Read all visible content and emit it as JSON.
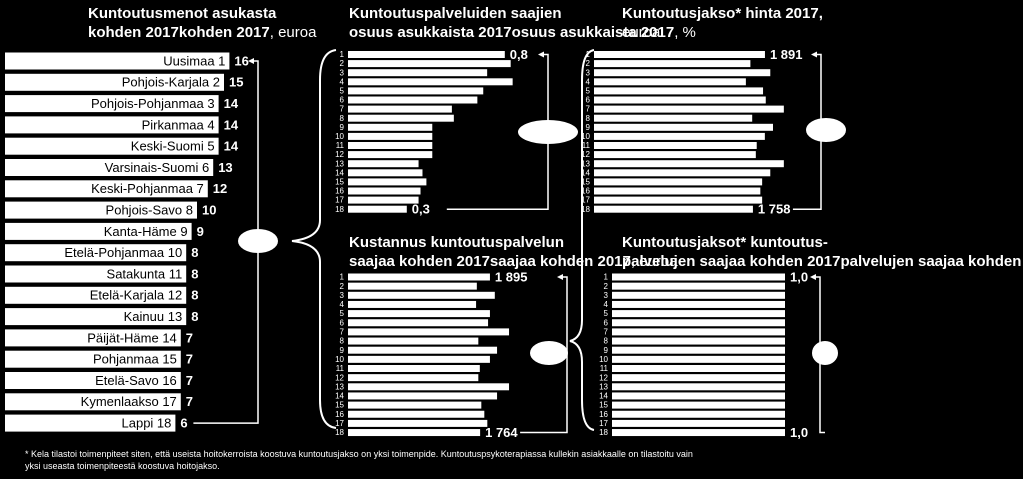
{
  "chart_data": [
    {
      "type": "bar",
      "orientation": "horizontal",
      "color": "#ffffff",
      "title_lines": [
        "Kuntoutusmenot asukasta",
        "kohden 2017"
      ],
      "title_suffix": ", euroa",
      "categories": [
        "Uusimaa 1",
        "Pohjois-Karjala 2",
        "Pohjois-Pohjanmaa 3",
        "Pirkanmaa 4",
        "Keski-Suomi 5",
        "Varsinais-Suomi 6",
        "Keski-Pohjanmaa 7",
        "Pohjois-Savo 8",
        "Kanta-Häme 9",
        "Etelä-Pohjanmaa 10",
        "Satakunta 11",
        "Etelä-Karjala 12",
        "Kainuu 13",
        "Päijät-Häme 14",
        "Pohjanmaa 15",
        "Etelä-Savo 16",
        "Kymenlaakso 17",
        "Lappi 18"
      ],
      "values": [
        16,
        15,
        14,
        14,
        14,
        13,
        12,
        10,
        9,
        8,
        8,
        8,
        8,
        7,
        7,
        7,
        7,
        6
      ]
    },
    {
      "type": "bar",
      "orientation": "horizontal",
      "color": "#ffffff",
      "title_lines": [
        "Kuntoutuspalveluiden saajien",
        "osuus asukkaista 2017"
      ],
      "title_suffix": ", %",
      "categories": [
        "1",
        "2",
        "3",
        "4",
        "5",
        "6",
        "7",
        "8",
        "9",
        "10",
        "11",
        "12",
        "13",
        "14",
        "15",
        "16",
        "17",
        "18"
      ],
      "values": [
        0.8,
        0.83,
        0.71,
        0.84,
        0.69,
        0.66,
        0.53,
        0.54,
        0.43,
        0.43,
        0.43,
        0.43,
        0.36,
        0.38,
        0.4,
        0.37,
        0.36,
        0.3
      ],
      "value_labels": [
        "0,8",
        null,
        null,
        null,
        null,
        null,
        null,
        null,
        null,
        null,
        null,
        null,
        null,
        null,
        null,
        null,
        null,
        "0,3"
      ]
    },
    {
      "type": "bar",
      "orientation": "horizontal",
      "color": "#ffffff",
      "title_lines": [
        "Kuntoutusjakso* hinta 2017,"
      ],
      "title_suffix_lines": [
        "euroa"
      ],
      "categories": [
        "1",
        "2",
        "3",
        "4",
        "5",
        "6",
        "7",
        "8",
        "9",
        "10",
        "11",
        "12",
        "13",
        "14",
        "15",
        "16",
        "17",
        "18"
      ],
      "values": [
        1891,
        1730,
        1950,
        1680,
        1870,
        1900,
        2100,
        1750,
        1980,
        1890,
        1800,
        1790,
        2100,
        1950,
        1860,
        1840,
        1860,
        1758
      ],
      "value_labels": [
        "1 891",
        null,
        null,
        null,
        null,
        null,
        null,
        null,
        null,
        null,
        null,
        null,
        null,
        null,
        null,
        null,
        null,
        "1 758"
      ]
    },
    {
      "type": "bar",
      "orientation": "horizontal",
      "color": "#ffffff",
      "title_lines": [
        "Kustannus kuntoutuspalvelun",
        "saajaa kohden 2017"
      ],
      "title_suffix": ", euroa",
      "categories": [
        "1",
        "2",
        "3",
        "4",
        "5",
        "6",
        "7",
        "8",
        "9",
        "10",
        "11",
        "12",
        "13",
        "14",
        "15",
        "16",
        "17",
        "18"
      ],
      "values": [
        1895,
        1720,
        1960,
        1710,
        1895,
        1870,
        2150,
        1740,
        1990,
        1895,
        1760,
        1740,
        2150,
        1990,
        1780,
        1820,
        1860,
        1764
      ],
      "value_labels": [
        "1 895",
        null,
        null,
        null,
        null,
        null,
        null,
        null,
        null,
        null,
        null,
        null,
        null,
        null,
        null,
        null,
        null,
        "1 764"
      ]
    },
    {
      "type": "bar",
      "orientation": "horizontal",
      "color": "#ffffff",
      "title_lines": [
        "Kuntoutusjaksot* kuntoutus-",
        "palvelujen saajaa kohden 2017"
      ],
      "title_suffix": ", n",
      "categories": [
        "1",
        "2",
        "3",
        "4",
        "5",
        "6",
        "7",
        "8",
        "9",
        "10",
        "11",
        "12",
        "13",
        "14",
        "15",
        "16",
        "17",
        "18"
      ],
      "values": [
        1.0,
        1.0,
        1.0,
        1.0,
        1.0,
        1.0,
        1.0,
        1.0,
        1.0,
        1.0,
        1.0,
        1.0,
        1.0,
        1.0,
        1.0,
        1.0,
        1.0,
        1.0
      ],
      "value_labels": [
        "1,0",
        null,
        null,
        null,
        null,
        null,
        null,
        null,
        null,
        null,
        null,
        null,
        null,
        null,
        null,
        null,
        null,
        "1,0"
      ]
    }
  ],
  "footnote": [
    "* Kela tilastoi toimenpiteet siten, että useista hoitokerroista koostuva kuntoutusjakso on yksi toimenpide. Kuntoutuspsykoterapiassa kullekin asiakkaalle on tilastoitu vain",
    "yksi useasta toimenpiteestä koostuva hoitojakso."
  ]
}
